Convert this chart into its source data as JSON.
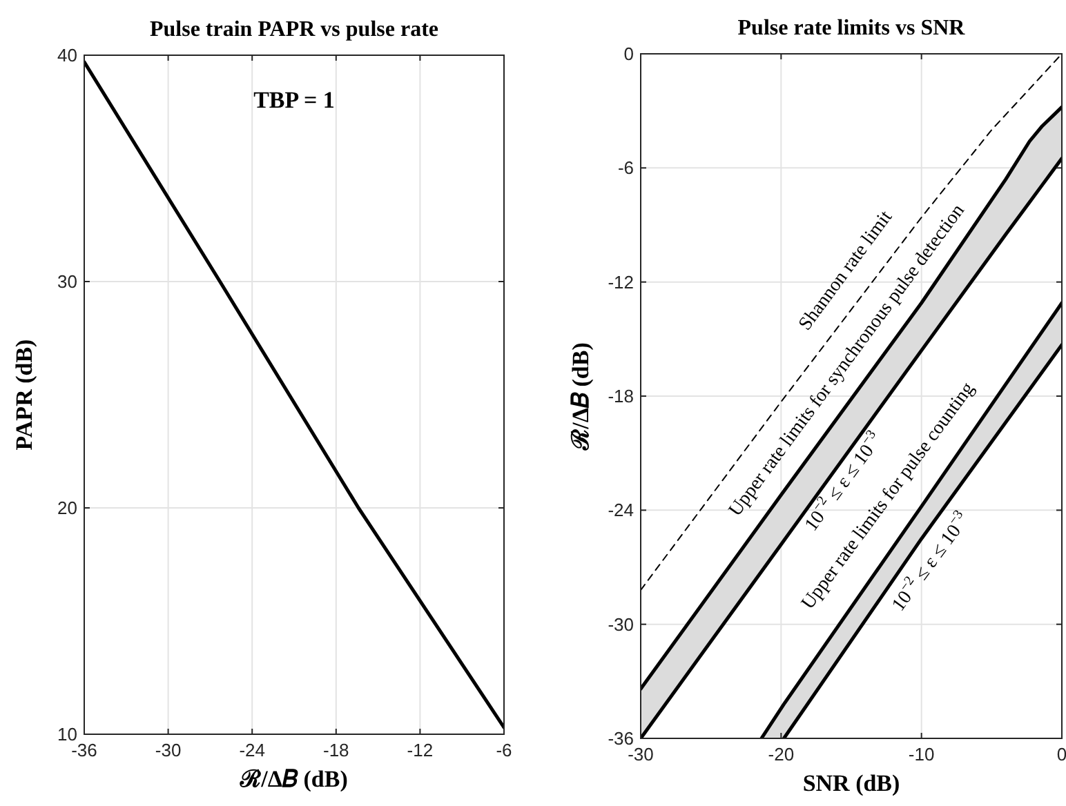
{
  "chart_data": [
    {
      "type": "line",
      "title": "Pulse train PAPR vs pulse rate",
      "xlabel": "ℛ/Δ𝐵 (dB)",
      "ylabel": "PAPR (dB)",
      "xlim": [
        -36,
        -6
      ],
      "xticks": [
        -36,
        -30,
        -24,
        -18,
        -12,
        -6
      ],
      "ylim": [
        10,
        40
      ],
      "yticks": [
        10,
        20,
        30,
        40
      ],
      "grid": true,
      "annotations": [
        "TBP = 1"
      ],
      "series": [
        {
          "color": "#000000",
          "x": [
            -36,
            -26.3,
            -16.4,
            -6
          ],
          "values": [
            39.7,
            30,
            20,
            10.3
          ]
        }
      ]
    },
    {
      "type": "line",
      "title": "Pulse rate limits vs SNR",
      "xlabel": "SNR (dB)",
      "ylabel": "ℛ/Δ𝐵 (dB)",
      "xlim": [
        -30,
        0
      ],
      "xticks": [
        -30,
        -20,
        -10,
        0
      ],
      "ylim": [
        -36,
        0
      ],
      "yticks": [
        -36,
        -30,
        -24,
        -18,
        -12,
        -6,
        0
      ],
      "grid": true,
      "annotations": [
        "Shannon rate limit",
        "Upper rate limits for synchronous pulse detection",
        "10$^{−2}$ ≤ ε ≤ 10$^{−3}$",
        "Upper rate limits for pulse counting",
        "10$^{−2}$ ≤ ε ≤ 10$^{−3}$"
      ],
      "series": [
        {
          "line_style": "dashed",
          "color": "#000000",
          "x": [
            -30,
            -20,
            -10,
            -5,
            0
          ],
          "values": [
            -28.2,
            -18.3,
            -8.6,
            -4.0,
            0
          ]
        },
        {
          "color": "#000000",
          "x": [
            -30,
            -20,
            -10,
            -4,
            -2.3,
            -1.4,
            0
          ],
          "values": [
            -33.4,
            -23.2,
            -13.1,
            -6.6,
            -4.6,
            -3.8,
            -2.8
          ],
          "lower": [
            -36,
            -25.8,
            -15.6,
            -9.5,
            -7.8,
            -6.9,
            -5.5
          ],
          "upper": [
            -33.4,
            -23.2,
            -13.1,
            -6.6,
            -4.6,
            -3.8,
            -2.8
          ]
        },
        {
          "color": "#000000",
          "x": [
            -30,
            -20,
            -10,
            -4,
            -2.3,
            -1.4,
            0
          ],
          "values": [
            -36,
            -25.8,
            -15.6,
            -9.5,
            -7.8,
            -6.9,
            -5.5
          ]
        },
        {
          "color": "#000000",
          "x": [
            -21.4,
            -19.8,
            -10,
            0
          ],
          "values": [
            -36,
            -34.2,
            -23.8,
            -13.1
          ],
          "lower": [
            -36,
            -36,
            -25.5,
            -15.3
          ],
          "upper": [
            -36,
            -34.2,
            -23.8,
            -13.1
          ]
        },
        {
          "color": "#000000",
          "x": [
            -19.8,
            -10,
            0
          ],
          "values": [
            -36,
            -25.5,
            -15.3
          ]
        }
      ]
    }
  ]
}
